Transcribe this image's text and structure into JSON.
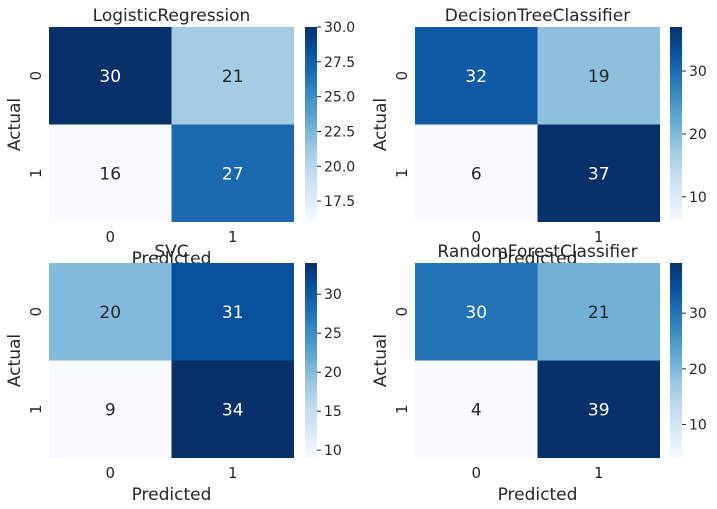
{
  "chart_data": [
    {
      "type": "heatmap",
      "title": "LogisticRegression",
      "xlabel": "Predicted",
      "ylabel": "Actual",
      "x_categories": [
        "0",
        "1"
      ],
      "y_categories": [
        "0",
        "1"
      ],
      "values": [
        [
          30,
          21
        ],
        [
          16,
          27
        ]
      ],
      "colorbar_range": [
        16,
        30
      ],
      "colorbar_ticks": [
        "17.5",
        "20.0",
        "22.5",
        "25.0",
        "27.5",
        "30.0"
      ],
      "colormap": "Blues"
    },
    {
      "type": "heatmap",
      "title": "DecisionTreeClassifier",
      "xlabel": "Predicted",
      "ylabel": "Actual",
      "x_categories": [
        "0",
        "1"
      ],
      "y_categories": [
        "0",
        "1"
      ],
      "values": [
        [
          32,
          19
        ],
        [
          6,
          37
        ]
      ],
      "colorbar_range": [
        6,
        37
      ],
      "colorbar_ticks": [
        "10",
        "20",
        "30"
      ],
      "colormap": "Blues"
    },
    {
      "type": "heatmap",
      "title": "SVC",
      "xlabel": "Predicted",
      "ylabel": "Actual",
      "x_categories": [
        "0",
        "1"
      ],
      "y_categories": [
        "0",
        "1"
      ],
      "values": [
        [
          20,
          31
        ],
        [
          9,
          34
        ]
      ],
      "colorbar_range": [
        9,
        34
      ],
      "colorbar_ticks": [
        "10",
        "15",
        "20",
        "25",
        "30"
      ],
      "colormap": "Blues"
    },
    {
      "type": "heatmap",
      "title": "RandomForestClassifier",
      "xlabel": "Predicted",
      "ylabel": "Actual",
      "x_categories": [
        "0",
        "1"
      ],
      "y_categories": [
        "0",
        "1"
      ],
      "values": [
        [
          30,
          21
        ],
        [
          4,
          39
        ]
      ],
      "colorbar_range": [
        4,
        39
      ],
      "colorbar_ticks": [
        "10",
        "20",
        "30"
      ],
      "colormap": "Blues"
    }
  ]
}
